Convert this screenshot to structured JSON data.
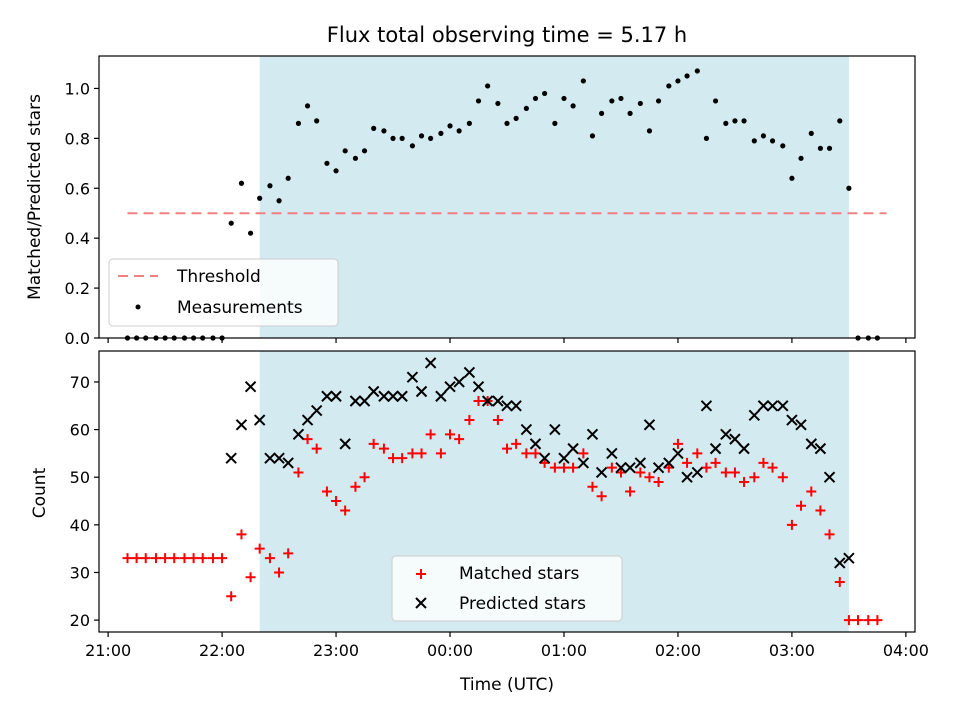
{
  "chart_data": [
    {
      "type": "scatter",
      "title": "Flux total observing time = 5.17 h",
      "xlabel": "",
      "ylabel": "Matched/Predicted stars",
      "xlim": [
        -0.08,
        7.08
      ],
      "ylim": [
        0,
        1.13
      ],
      "yticks": [
        0.0,
        0.2,
        0.4,
        0.6,
        0.8,
        1.0
      ],
      "ytick_labels": [
        "0.0",
        "0.2",
        "0.4",
        "0.6",
        "0.8",
        "1.0"
      ],
      "shaded_span": [
        1.33,
        6.5
      ],
      "shade_color": "#d3eaf0",
      "threshold": {
        "name": "Threshold",
        "y": 0.5,
        "x_range": [
          0.17,
          6.83
        ],
        "color": "#f08080"
      },
      "legend": {
        "position": "lower-left",
        "entries": [
          "Threshold",
          "Measurements"
        ]
      },
      "series": [
        {
          "name": "Measurements",
          "marker": "dot",
          "color": "#000000",
          "x": [
            0.17,
            0.25,
            0.33,
            0.42,
            0.5,
            0.58,
            0.67,
            0.75,
            0.83,
            0.92,
            1.0,
            1.08,
            1.17,
            1.25,
            1.33,
            1.42,
            1.5,
            1.58,
            1.67,
            1.75,
            1.83,
            1.92,
            2.0,
            2.08,
            2.17,
            2.25,
            2.33,
            2.42,
            2.5,
            2.58,
            2.67,
            2.75,
            2.83,
            2.92,
            3.0,
            3.08,
            3.17,
            3.25,
            3.33,
            3.42,
            3.5,
            3.58,
            3.67,
            3.75,
            3.83,
            3.92,
            4.0,
            4.08,
            4.17,
            4.25,
            4.33,
            4.42,
            4.5,
            4.58,
            4.67,
            4.75,
            4.83,
            4.92,
            5.0,
            5.08,
            5.17,
            5.25,
            5.33,
            5.42,
            5.5,
            5.58,
            5.67,
            5.75,
            5.83,
            5.92,
            6.0,
            6.08,
            6.17,
            6.25,
            6.33,
            6.42,
            6.5,
            6.58,
            6.67,
            6.75
          ],
          "y": [
            0,
            0,
            0,
            0,
            0,
            0,
            0,
            0,
            0,
            0,
            0,
            0.46,
            0.62,
            0.42,
            0.56,
            0.61,
            0.55,
            0.64,
            0.86,
            0.93,
            0.87,
            0.7,
            0.67,
            0.75,
            0.72,
            0.75,
            0.84,
            0.83,
            0.8,
            0.8,
            0.77,
            0.81,
            0.8,
            0.82,
            0.85,
            0.83,
            0.86,
            0.95,
            1.01,
            0.94,
            0.86,
            0.88,
            0.92,
            0.96,
            0.98,
            0.86,
            0.96,
            0.93,
            1.03,
            0.81,
            0.9,
            0.95,
            0.96,
            0.9,
            0.94,
            0.83,
            0.95,
            1.01,
            1.03,
            1.05,
            1.07,
            0.8,
            0.95,
            0.86,
            0.87,
            0.87,
            0.79,
            0.81,
            0.79,
            0.77,
            0.64,
            0.72,
            0.82,
            0.76,
            0.76,
            0.87,
            0.6,
            0,
            0,
            0
          ]
        }
      ]
    },
    {
      "type": "scatter",
      "title": "",
      "xlabel": "Time (UTC)",
      "ylabel": "Count",
      "xlim": [
        -0.08,
        7.08
      ],
      "ylim": [
        17.5,
        76.5
      ],
      "yticks": [
        20,
        30,
        40,
        50,
        60,
        70
      ],
      "ytick_labels": [
        "20",
        "30",
        "40",
        "50",
        "60",
        "70"
      ],
      "xticks": [
        0,
        1,
        2,
        3,
        4,
        5,
        6,
        7
      ],
      "xtick_labels": [
        "21:00",
        "22:00",
        "23:00",
        "00:00",
        "01:00",
        "02:00",
        "03:00",
        "04:00"
      ],
      "shaded_span": [
        1.33,
        6.5
      ],
      "shade_color": "#d3eaf0",
      "legend": {
        "position": "lower-center",
        "entries": [
          "Matched stars",
          "Predicted stars"
        ]
      },
      "series": [
        {
          "name": "Matched stars",
          "marker": "plus",
          "color": "#ff0000",
          "x": [
            0.17,
            0.25,
            0.33,
            0.42,
            0.5,
            0.58,
            0.67,
            0.75,
            0.83,
            0.92,
            1.0,
            1.08,
            1.17,
            1.25,
            1.33,
            1.42,
            1.5,
            1.58,
            1.67,
            1.75,
            1.83,
            1.92,
            2.0,
            2.08,
            2.17,
            2.25,
            2.33,
            2.42,
            2.5,
            2.58,
            2.67,
            2.75,
            2.83,
            2.92,
            3.0,
            3.08,
            3.17,
            3.25,
            3.33,
            3.42,
            3.5,
            3.58,
            3.67,
            3.75,
            3.83,
            3.92,
            4.0,
            4.08,
            4.17,
            4.25,
            4.33,
            4.42,
            4.5,
            4.58,
            4.67,
            4.75,
            4.83,
            4.92,
            5.0,
            5.08,
            5.17,
            5.25,
            5.33,
            5.42,
            5.5,
            5.58,
            5.67,
            5.75,
            5.83,
            5.92,
            6.0,
            6.08,
            6.17,
            6.25,
            6.33,
            6.42,
            6.5,
            6.58,
            6.67,
            6.75
          ],
          "y": [
            33,
            33,
            33,
            33,
            33,
            33,
            33,
            33,
            33,
            33,
            33,
            25,
            38,
            29,
            35,
            33,
            30,
            34,
            51,
            58,
            56,
            47,
            45,
            43,
            48,
            50,
            57,
            56,
            54,
            54,
            55,
            55,
            59,
            55,
            59,
            58,
            62,
            66,
            66,
            62,
            56,
            57,
            55,
            55,
            53,
            52,
            52,
            52,
            55,
            48,
            46,
            52,
            51,
            47,
            51,
            50,
            49,
            52,
            57,
            53,
            55,
            52,
            53,
            51,
            51,
            49,
            50,
            53,
            52,
            50,
            40,
            44,
            47,
            43,
            38,
            28,
            20,
            20,
            20,
            20
          ]
        },
        {
          "name": "Predicted stars",
          "marker": "x",
          "color": "#000000",
          "x": [
            1.08,
            1.17,
            1.25,
            1.33,
            1.42,
            1.5,
            1.58,
            1.67,
            1.75,
            1.83,
            1.92,
            2.0,
            2.08,
            2.17,
            2.25,
            2.33,
            2.42,
            2.5,
            2.58,
            2.67,
            2.75,
            2.83,
            2.92,
            3.0,
            3.08,
            3.17,
            3.25,
            3.33,
            3.42,
            3.5,
            3.58,
            3.67,
            3.75,
            3.83,
            3.92,
            4.0,
            4.08,
            4.17,
            4.25,
            4.33,
            4.42,
            4.5,
            4.58,
            4.67,
            4.75,
            4.83,
            4.92,
            5.0,
            5.08,
            5.17,
            5.25,
            5.33,
            5.42,
            5.5,
            5.58,
            5.67,
            5.75,
            5.83,
            5.92,
            6.0,
            6.08,
            6.17,
            6.25,
            6.33,
            6.42,
            6.5
          ],
          "y": [
            54,
            61,
            69,
            62,
            54,
            54,
            53,
            59,
            62,
            64,
            67,
            67,
            57,
            66,
            66,
            68,
            67,
            67,
            67,
            71,
            68,
            74,
            67,
            69,
            70,
            72,
            69,
            66,
            66,
            65,
            65,
            60,
            57,
            54,
            60,
            54,
            56,
            53,
            59,
            51,
            55,
            52,
            52,
            53,
            61,
            52,
            53,
            55,
            50,
            51,
            65,
            56,
            59,
            58,
            56,
            63,
            65,
            65,
            65,
            62,
            61,
            57,
            56,
            50,
            32,
            33
          ]
        }
      ]
    }
  ]
}
